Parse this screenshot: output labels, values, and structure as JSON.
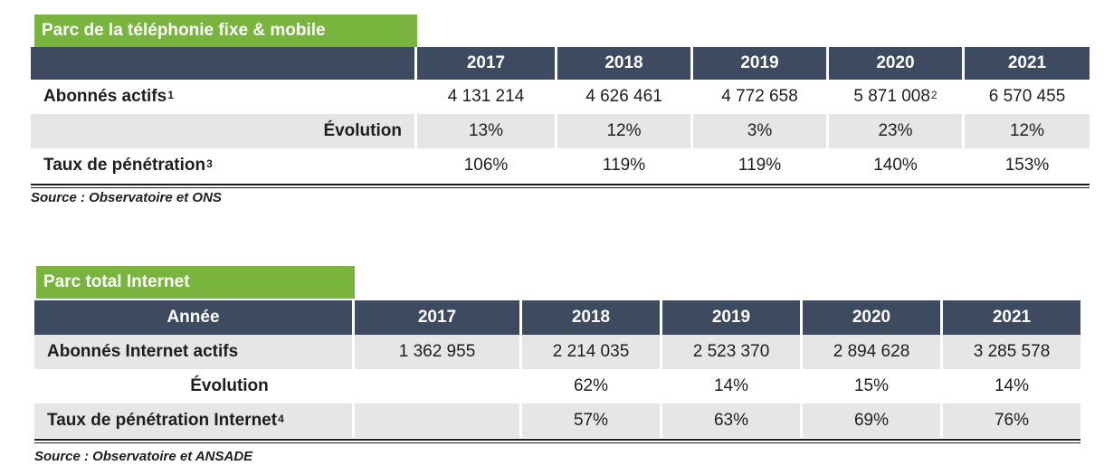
{
  "table1": {
    "title": "Parc de la téléphonie fixe & mobile",
    "header_label": "",
    "years": [
      "2017",
      "2018",
      "2019",
      "2020",
      "2021"
    ],
    "rows": [
      {
        "label": "Abonnés actifs",
        "note": "1",
        "align": "left",
        "shade": "white",
        "values": [
          "4 131 214",
          "4 626 461",
          "4 772 658",
          "5 871 008",
          "6 570 455"
        ],
        "value_notes": [
          "",
          "",
          "",
          "2",
          ""
        ]
      },
      {
        "label": "Évolution",
        "note": "",
        "align": "right",
        "shade": "gray",
        "values": [
          "13%",
          "12%",
          "3%",
          "23%",
          "12%"
        ],
        "value_notes": [
          "",
          "",
          "",
          "",
          ""
        ]
      },
      {
        "label": "Taux de pénétration",
        "note": "3",
        "align": "left",
        "shade": "white",
        "values": [
          "106%",
          "119%",
          "119%",
          "140%",
          "153%"
        ],
        "value_notes": [
          "",
          "",
          "",
          "",
          ""
        ]
      }
    ],
    "source": "Source : Observatoire et ONS"
  },
  "table2": {
    "title": "Parc total Internet",
    "header_label": "Année",
    "years": [
      "2017",
      "2018",
      "2019",
      "2020",
      "2021"
    ],
    "rows": [
      {
        "label": "Abonnés Internet actifs",
        "note": "",
        "align": "left",
        "shade": "gray",
        "values": [
          "1 362 955",
          "2 214 035",
          "2 523 370",
          "2 894 628",
          "3 285 578"
        ],
        "value_notes": [
          "",
          "",
          "",
          "",
          ""
        ]
      },
      {
        "label": "Évolution",
        "note": "",
        "align": "center",
        "shade": "white",
        "values": [
          "",
          "62%",
          "14%",
          "15%",
          "14%"
        ],
        "value_notes": [
          "",
          "",
          "",
          "",
          ""
        ]
      },
      {
        "label": "Taux de pénétration Internet",
        "note": "4",
        "align": "left",
        "shade": "gray",
        "values": [
          "",
          "57%",
          "63%",
          "69%",
          "76%"
        ],
        "value_notes": [
          "",
          "",
          "",
          "",
          ""
        ]
      }
    ],
    "source": "Source : Observatoire et ANSADE"
  }
}
